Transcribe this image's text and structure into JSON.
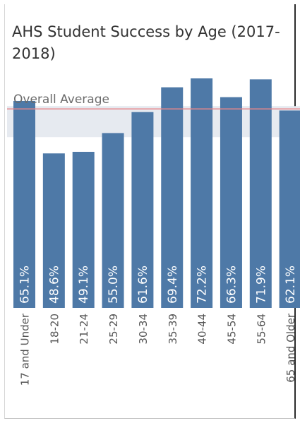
{
  "chart_data": {
    "type": "bar",
    "title": "AHS Student Success by Age (2017-2018)",
    "categories": [
      "17 and Under",
      "18-20",
      "21-24",
      "25-29",
      "30-34",
      "35-39",
      "40-44",
      "45-54",
      "55-64",
      "65 and Older"
    ],
    "values": [
      65.1,
      48.6,
      49.1,
      55.0,
      61.6,
      69.4,
      72.2,
      66.3,
      71.9,
      62.1
    ],
    "value_labels": [
      "65.1%",
      "48.6%",
      "49.1%",
      "55.0%",
      "61.6%",
      "69.4%",
      "72.2%",
      "66.3%",
      "71.9%",
      "62.1%"
    ],
    "reference_line": {
      "label": "Overall Average",
      "value": 62.6
    },
    "xlabel": "",
    "ylabel": "",
    "ylim": [
      0,
      72.2
    ],
    "grid": false,
    "legend": "none",
    "colors": {
      "bar": "#4e79a7",
      "reference_line": "#e8868a",
      "reference_band": "#e6eaf0"
    }
  }
}
